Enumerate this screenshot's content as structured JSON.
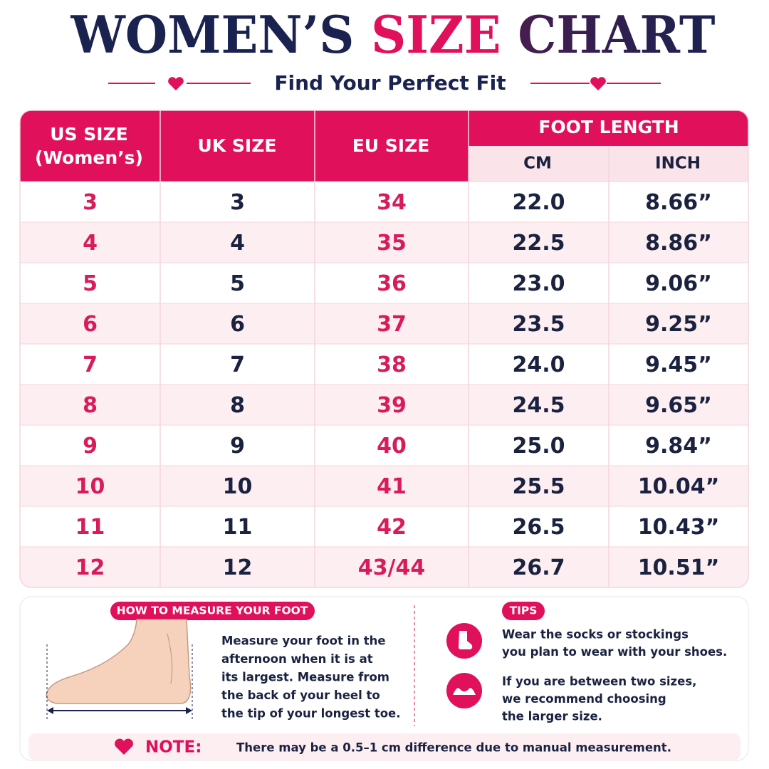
{
  "header": {
    "title": [
      "WOMEN’S",
      "SIZE",
      "CHART"
    ],
    "subtitle": "Find Your Perfect Fit"
  },
  "table": {
    "headers": {
      "us": [
        "US SIZE",
        "(Women’s)"
      ],
      "uk": "UK SIZE",
      "eu": "EU SIZE",
      "foot_length": "FOOT LENGTH",
      "cm": "CM",
      "inch": "INCH"
    },
    "rows": [
      [
        "3",
        "3",
        "34",
        "22.0",
        "8.66”"
      ],
      [
        "4",
        "4",
        "35",
        "22.5",
        "8.86”"
      ],
      [
        "5",
        "5",
        "36",
        "23.0",
        "9.06”"
      ],
      [
        "6",
        "6",
        "37",
        "23.5",
        "9.25”"
      ],
      [
        "7",
        "7",
        "38",
        "24.0",
        "9.45”"
      ],
      [
        "8",
        "8",
        "39",
        "24.5",
        "9.65”"
      ],
      [
        "9",
        "9",
        "40",
        "25.0",
        "9.84”"
      ],
      [
        "10",
        "10",
        "41",
        "25.5",
        "10.04”"
      ],
      [
        "11",
        "11",
        "42",
        "26.5",
        "10.43”"
      ],
      [
        "12",
        "12",
        "43/44",
        "26.7",
        "10.51”"
      ]
    ]
  },
  "measure": {
    "label": "HOW TO MEASURE YOUR FOOT",
    "lines": [
      "Measure your foot in the",
      "afternoon when it is at",
      "its largest. Measure from",
      "the back of your heel to",
      "the tip of your longest toe."
    ]
  },
  "tips": {
    "label": "TIPS",
    "items": [
      [
        "Wear the socks or stockings",
        "you plan to wear with your shoes."
      ],
      [
        "If you are between two sizes,",
        "we recommend choosing",
        "the larger size."
      ]
    ]
  },
  "note": {
    "label": "NOTE:",
    "text": "There may be a 0.5–1 cm difference due to manual measurement."
  }
}
